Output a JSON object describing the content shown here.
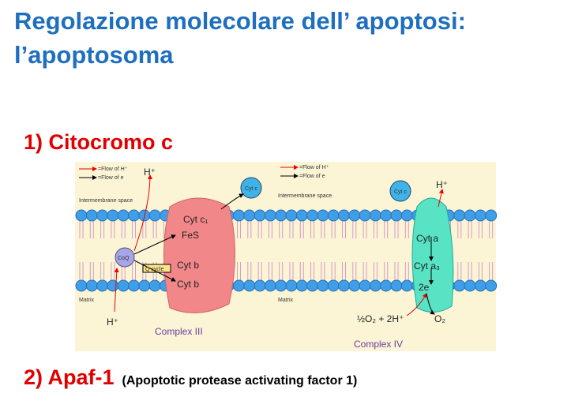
{
  "header": {
    "title_lines": [
      "Regolazione molecolare dell’ apoptosi:",
      "l’apoptosoma"
    ]
  },
  "sections": [
    {
      "label": "1) Citocromo c"
    },
    {
      "label": "2) Apaf-1",
      "note": "(Apoptotic protease activating factor 1)"
    }
  ],
  "diagram": {
    "left": {
      "legend": [
        "=Flow of H⁺",
        "=Flow of e"
      ],
      "proton_top": "H⁺",
      "space": "Intermembrane space",
      "cytc": "Cyt c",
      "cytc1": "Cyt c₁",
      "fes": "FeS",
      "coq": "CoQ",
      "qcycle": "Q cycle",
      "cytb1": "Cyt b",
      "cytb2": "Cyt b",
      "matrix": "Matrix",
      "proton_bottom": "H⁺",
      "complex": "Complex III"
    },
    "right": {
      "legend": [
        "=Flow of H⁺",
        "=Flow of e"
      ],
      "space": "Intermembrane space",
      "cytc": "Cyt c",
      "proton_top": "H⁺",
      "cyta": "Cyt a",
      "cyta3": "Cyt a₃",
      "e2": "2e",
      "matrix": "Matrix",
      "reactants": "½O₂ + 2H⁺",
      "product": "O₂",
      "complex": "Complex IV"
    }
  }
}
